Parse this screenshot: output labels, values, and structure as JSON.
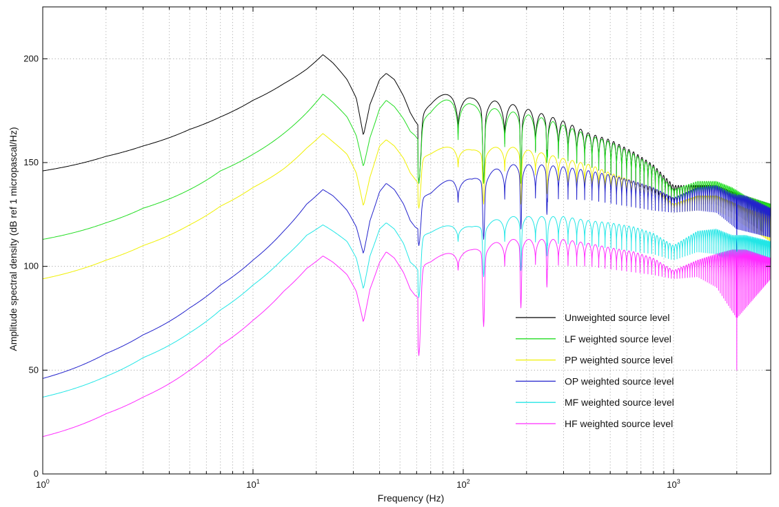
{
  "chart_data": {
    "type": "line",
    "title": "",
    "xlabel": "Frequency (Hz)",
    "ylabel": "Amplitude spectral density (dB ref 1 micropascal/Hz)",
    "x_scale": "log",
    "xlim": [
      1,
      2900
    ],
    "ylim": [
      0,
      225
    ],
    "x_major_ticks": [
      {
        "value": 1,
        "base": "10",
        "exp": "0"
      },
      {
        "value": 10,
        "base": "10",
        "exp": "1"
      },
      {
        "value": 100,
        "base": "10",
        "exp": "2"
      },
      {
        "value": 1000,
        "base": "10",
        "exp": "3"
      }
    ],
    "y_ticks": [
      {
        "value": 0,
        "label": "0"
      },
      {
        "value": 50,
        "label": "50"
      },
      {
        "value": 100,
        "label": "100"
      },
      {
        "value": 150,
        "label": "150"
      },
      {
        "value": 200,
        "label": "200"
      }
    ],
    "grid": "dotted",
    "legend_position": "bottom-right",
    "series": [
      {
        "name": "Unweighted source level",
        "color": "#000000",
        "low_freq": [
          [
            1,
            146
          ],
          [
            2,
            153
          ],
          [
            3,
            158
          ],
          [
            5,
            166
          ],
          [
            7,
            172
          ],
          [
            10,
            180
          ],
          [
            14,
            188
          ],
          [
            18,
            195
          ],
          [
            21.5,
            202
          ],
          [
            24,
            198
          ],
          [
            28,
            190
          ],
          [
            31,
            181
          ],
          [
            33.5,
            163
          ],
          [
            36,
            178
          ],
          [
            40,
            190
          ],
          [
            43,
            193
          ],
          [
            47,
            190
          ],
          [
            52,
            182
          ],
          [
            56,
            174
          ],
          [
            59,
            170
          ],
          [
            61,
            168
          ]
        ],
        "peak_envelope": [
          [
            70,
            180
          ],
          [
            90,
            185
          ],
          [
            110,
            181
          ],
          [
            160,
            179
          ],
          [
            230,
            174
          ],
          [
            300,
            170
          ],
          [
            400,
            164
          ],
          [
            500,
            161
          ],
          [
            650,
            155
          ],
          [
            800,
            149
          ],
          [
            1000,
            139
          ],
          [
            1300,
            139
          ],
          [
            1600,
            139
          ],
          [
            1900,
            136
          ],
          [
            2200,
            134
          ],
          [
            2900,
            130
          ]
        ],
        "floor_envelope": [
          [
            70,
            166
          ],
          [
            200,
            157
          ],
          [
            400,
            148
          ],
          [
            800,
            136
          ],
          [
            1000,
            130
          ],
          [
            1300,
            130
          ],
          [
            1600,
            130
          ],
          [
            2000,
            125
          ],
          [
            2900,
            114
          ]
        ],
        "dips": [
          [
            61.5,
            140
          ],
          [
            125,
            140
          ],
          [
            188,
            140
          ],
          [
            250,
            150
          ]
        ]
      },
      {
        "name": "LF weighted source level",
        "color": "#22dd22",
        "low_freq": [
          [
            1,
            113
          ],
          [
            2,
            121
          ],
          [
            3,
            128
          ],
          [
            5,
            137
          ],
          [
            7,
            146
          ],
          [
            10,
            154
          ],
          [
            14,
            164
          ],
          [
            18,
            174
          ],
          [
            21.5,
            183
          ],
          [
            24,
            179
          ],
          [
            28,
            172
          ],
          [
            31,
            163
          ],
          [
            33.5,
            148
          ],
          [
            36,
            162
          ],
          [
            40,
            176
          ],
          [
            43,
            180
          ],
          [
            47,
            177
          ],
          [
            52,
            171
          ],
          [
            56,
            165
          ],
          [
            59,
            163
          ],
          [
            61,
            161
          ]
        ],
        "peak_envelope": [
          [
            70,
            176
          ],
          [
            90,
            183
          ],
          [
            110,
            178
          ],
          [
            160,
            175
          ],
          [
            230,
            172
          ],
          [
            300,
            168
          ],
          [
            400,
            163
          ],
          [
            500,
            160
          ],
          [
            650,
            154
          ],
          [
            800,
            148
          ],
          [
            1000,
            137
          ],
          [
            1300,
            141
          ],
          [
            1600,
            141
          ],
          [
            1900,
            138
          ],
          [
            2200,
            134
          ],
          [
            2900,
            130
          ]
        ],
        "floor_envelope": [
          [
            70,
            163
          ],
          [
            200,
            156
          ],
          [
            400,
            148
          ],
          [
            800,
            138
          ],
          [
            1000,
            133
          ],
          [
            1300,
            133
          ],
          [
            1600,
            133
          ],
          [
            2000,
            127
          ],
          [
            2900,
            116
          ]
        ],
        "dips": [
          [
            61.5,
            140
          ],
          [
            125,
            140
          ],
          [
            188,
            140
          ],
          [
            250,
            150
          ]
        ]
      },
      {
        "name": "PP weighted source level",
        "color": "#f0f000",
        "low_freq": [
          [
            1,
            94
          ],
          [
            2,
            103
          ],
          [
            3,
            110
          ],
          [
            5,
            120
          ],
          [
            7,
            129
          ],
          [
            10,
            138
          ],
          [
            14,
            147
          ],
          [
            18,
            157
          ],
          [
            21.5,
            164
          ],
          [
            24,
            160
          ],
          [
            28,
            154
          ],
          [
            31,
            145
          ],
          [
            33.5,
            129
          ],
          [
            36,
            143
          ],
          [
            40,
            158
          ],
          [
            43,
            161
          ],
          [
            47,
            158
          ],
          [
            52,
            152
          ],
          [
            56,
            145
          ],
          [
            59,
            142
          ],
          [
            61,
            140
          ]
        ],
        "peak_envelope": [
          [
            70,
            155
          ],
          [
            90,
            159
          ],
          [
            110,
            156
          ],
          [
            160,
            158
          ],
          [
            230,
            155
          ],
          [
            300,
            152
          ],
          [
            400,
            149
          ],
          [
            500,
            145
          ],
          [
            650,
            141
          ],
          [
            800,
            138
          ],
          [
            1000,
            130
          ],
          [
            1300,
            134
          ],
          [
            1600,
            134
          ],
          [
            1900,
            131
          ],
          [
            2200,
            128
          ],
          [
            2900,
            124
          ]
        ],
        "floor_envelope": [
          [
            70,
            149
          ],
          [
            200,
            145
          ],
          [
            400,
            138
          ],
          [
            800,
            130
          ],
          [
            1000,
            126
          ],
          [
            1300,
            127
          ],
          [
            1600,
            127
          ],
          [
            2000,
            122
          ],
          [
            2900,
            112
          ]
        ],
        "dips": [
          [
            61.5,
            128
          ],
          [
            125,
            130
          ],
          [
            188,
            130
          ],
          [
            250,
            135
          ]
        ]
      },
      {
        "name": "OP weighted source level",
        "color": "#2222cc",
        "low_freq": [
          [
            1,
            46
          ],
          [
            2,
            58
          ],
          [
            3,
            67
          ],
          [
            5,
            80
          ],
          [
            7,
            91
          ],
          [
            10,
            103
          ],
          [
            14,
            117
          ],
          [
            18,
            130
          ],
          [
            21.5,
            137
          ],
          [
            24,
            134
          ],
          [
            28,
            127
          ],
          [
            31,
            119
          ],
          [
            33.5,
            106
          ],
          [
            36,
            122
          ],
          [
            40,
            136
          ],
          [
            43,
            140
          ],
          [
            47,
            137
          ],
          [
            52,
            130
          ],
          [
            56,
            122
          ],
          [
            59,
            119
          ],
          [
            61,
            118
          ]
        ],
        "peak_envelope": [
          [
            70,
            136
          ],
          [
            90,
            144
          ],
          [
            110,
            142
          ],
          [
            160,
            149
          ],
          [
            230,
            149
          ],
          [
            300,
            148
          ],
          [
            400,
            146
          ],
          [
            500,
            144
          ],
          [
            650,
            141
          ],
          [
            800,
            138
          ],
          [
            1000,
            133
          ],
          [
            1300,
            138
          ],
          [
            1600,
            139
          ],
          [
            1900,
            135
          ],
          [
            2200,
            134
          ],
          [
            2900,
            128
          ]
        ],
        "floor_envelope": [
          [
            70,
            130
          ],
          [
            200,
            133
          ],
          [
            400,
            132
          ],
          [
            800,
            127
          ],
          [
            1000,
            126
          ],
          [
            1300,
            127
          ],
          [
            1600,
            126
          ],
          [
            2000,
            118
          ],
          [
            2900,
            114
          ]
        ],
        "dips": [
          [
            61.5,
            110
          ],
          [
            125,
            113
          ],
          [
            188,
            118
          ],
          [
            250,
            125
          ],
          [
            2000,
            100
          ]
        ]
      },
      {
        "name": "MF weighted source level",
        "color": "#22e6e6",
        "low_freq": [
          [
            1,
            37
          ],
          [
            2,
            47
          ],
          [
            3,
            56
          ],
          [
            5,
            68
          ],
          [
            7,
            79
          ],
          [
            10,
            91
          ],
          [
            14,
            104
          ],
          [
            18,
            115
          ],
          [
            21.5,
            120
          ],
          [
            24,
            117
          ],
          [
            28,
            112
          ],
          [
            31,
            104
          ],
          [
            33.5,
            89
          ],
          [
            36,
            105
          ],
          [
            40,
            118
          ],
          [
            43,
            121
          ],
          [
            47,
            118
          ],
          [
            52,
            111
          ],
          [
            56,
            102
          ],
          [
            59,
            100
          ],
          [
            61,
            98
          ]
        ],
        "peak_envelope": [
          [
            70,
            117
          ],
          [
            90,
            121
          ],
          [
            110,
            119
          ],
          [
            160,
            124
          ],
          [
            230,
            124
          ],
          [
            300,
            124
          ],
          [
            400,
            122
          ],
          [
            500,
            121
          ],
          [
            650,
            119
          ],
          [
            800,
            116
          ],
          [
            1000,
            110
          ],
          [
            1300,
            117
          ],
          [
            1600,
            118
          ],
          [
            1900,
            115
          ],
          [
            2200,
            115
          ],
          [
            2900,
            112
          ]
        ],
        "floor_envelope": [
          [
            70,
            112
          ],
          [
            200,
            112
          ],
          [
            400,
            110
          ],
          [
            800,
            106
          ],
          [
            1000,
            103
          ],
          [
            1300,
            107
          ],
          [
            1600,
            106
          ],
          [
            2000,
            100
          ],
          [
            2900,
            101
          ]
        ],
        "dips": [
          [
            61.5,
            85
          ],
          [
            125,
            95
          ],
          [
            188,
            98
          ],
          [
            250,
            105
          ]
        ]
      },
      {
        "name": "HF weighted source level",
        "color": "#ff2aff",
        "low_freq": [
          [
            1,
            18
          ],
          [
            2,
            29
          ],
          [
            3,
            37
          ],
          [
            5,
            50
          ],
          [
            7,
            62
          ],
          [
            10,
            74
          ],
          [
            14,
            88
          ],
          [
            18,
            99
          ],
          [
            21.5,
            105
          ],
          [
            24,
            102
          ],
          [
            28,
            96
          ],
          [
            31,
            88
          ],
          [
            33.5,
            73
          ],
          [
            36,
            89
          ],
          [
            40,
            102
          ],
          [
            43,
            107
          ],
          [
            47,
            104
          ],
          [
            52,
            97
          ],
          [
            56,
            89
          ],
          [
            59,
            86
          ],
          [
            61,
            85
          ]
        ],
        "peak_envelope": [
          [
            70,
            103
          ],
          [
            90,
            108
          ],
          [
            110,
            108
          ],
          [
            160,
            113
          ],
          [
            230,
            113
          ],
          [
            300,
            113
          ],
          [
            400,
            111
          ],
          [
            500,
            109
          ],
          [
            650,
            107
          ],
          [
            800,
            104
          ],
          [
            1000,
            98
          ],
          [
            1300,
            103
          ],
          [
            1600,
            106
          ],
          [
            1900,
            108
          ],
          [
            2200,
            108
          ],
          [
            2900,
            104
          ]
        ],
        "floor_envelope": [
          [
            70,
            97
          ],
          [
            200,
            101
          ],
          [
            400,
            100
          ],
          [
            800,
            96
          ],
          [
            1000,
            94
          ],
          [
            1300,
            95
          ],
          [
            1600,
            90
          ],
          [
            2000,
            75
          ],
          [
            2900,
            94
          ]
        ],
        "dips": [
          [
            61.5,
            57
          ],
          [
            125,
            71
          ],
          [
            188,
            80
          ],
          [
            250,
            90
          ],
          [
            2000,
            50
          ]
        ]
      }
    ]
  }
}
